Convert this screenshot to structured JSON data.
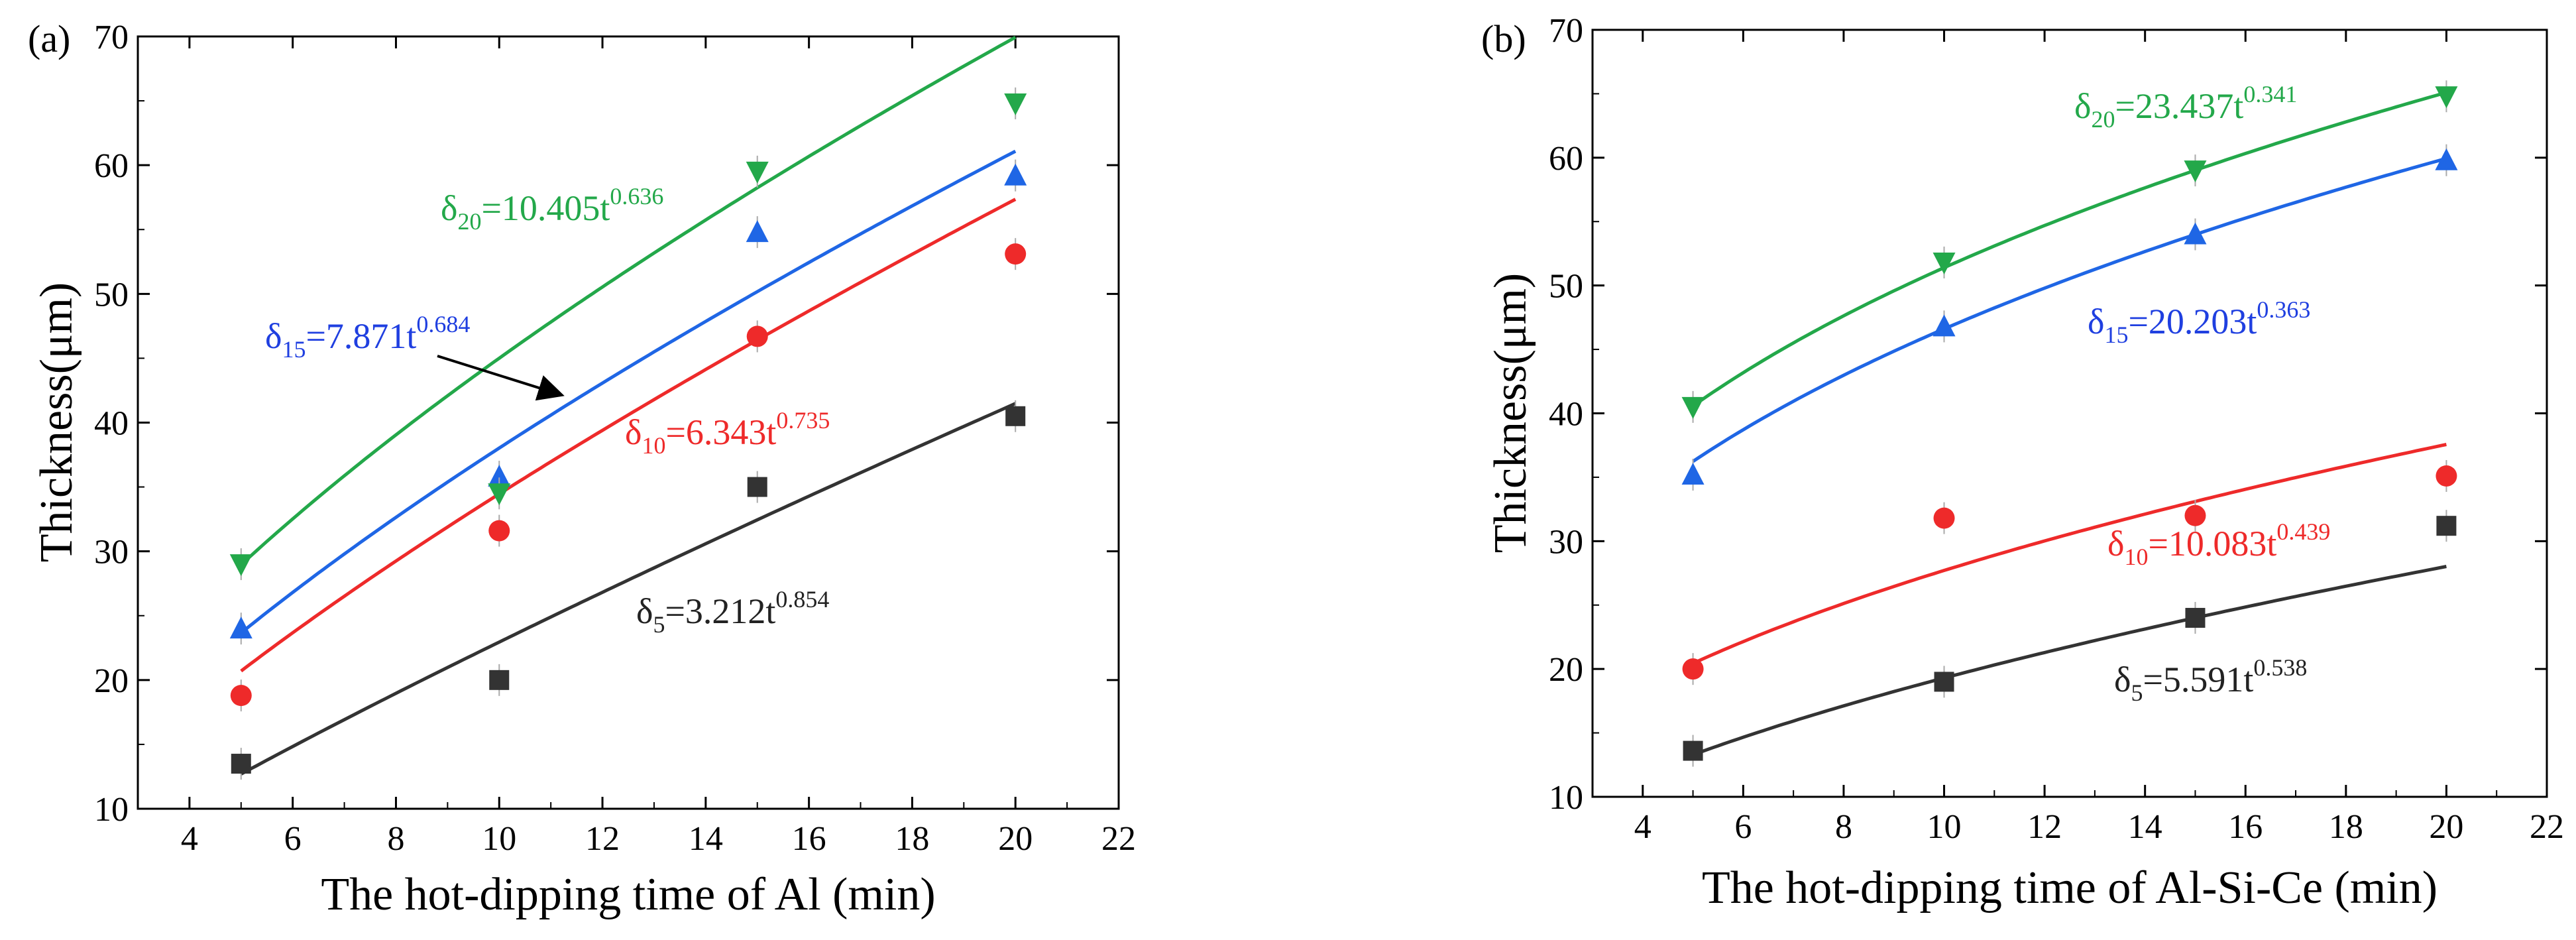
{
  "chart_data": [
    {
      "type": "scatter",
      "panel_label": "(a)",
      "xlabel": "The hot-dipping time of Al (min)",
      "ylabel": "Thickness(μm)",
      "xlim": [
        3,
        22
      ],
      "ylim": [
        10,
        70
      ],
      "xticks": [
        "4",
        "6",
        "8",
        "10",
        "12",
        "14",
        "16",
        "18",
        "20",
        "22"
      ],
      "yticks": [
        "10",
        "20",
        "30",
        "40",
        "50",
        "60",
        "70"
      ],
      "x": [
        5,
        10,
        15,
        20
      ],
      "series": [
        {
          "name": "δ5",
          "color": "#333333",
          "marker": "square",
          "values": [
            13.5,
            20.0,
            35.0,
            40.5
          ],
          "fit": {
            "a": 3.212,
            "b": 0.854
          },
          "label": {
            "pre": "δ",
            "sub": "5",
            "mid": "=3.212t",
            "sup": "0.854"
          }
        },
        {
          "name": "δ10",
          "color": "#ee2a2a",
          "marker": "circle",
          "values": [
            18.8,
            31.6,
            46.7,
            53.1
          ],
          "fit": {
            "a": 6.343,
            "b": 0.735
          },
          "label": {
            "pre": "δ",
            "sub": "10",
            "mid": "=6.343t",
            "sup": "0.735"
          }
        },
        {
          "name": "δ15",
          "color": "#1f66e5",
          "marker": "triangle-up",
          "values": [
            24.0,
            35.8,
            54.8,
            59.2
          ],
          "fit": {
            "a": 7.871,
            "b": 0.684
          },
          "label": {
            "pre": "δ",
            "sub": "15",
            "mid": "=7.871t",
            "sup": "0.684"
          }
        },
        {
          "name": "δ20",
          "color": "#23a84a",
          "marker": "triangle-down",
          "values": [
            29.0,
            34.5,
            59.5,
            64.8
          ],
          "fit": {
            "a": 10.405,
            "b": 0.636
          },
          "label": {
            "pre": "δ",
            "sub": "20",
            "mid": "=10.405t",
            "sup": "0.636"
          }
        }
      ]
    },
    {
      "type": "scatter",
      "panel_label": "(b)",
      "xlabel": "The hot-dipping time of Al-Si-Ce (min)",
      "ylabel": "Thickness(μm)",
      "xlim": [
        3,
        22
      ],
      "ylim": [
        10,
        70
      ],
      "xticks": [
        "4",
        "6",
        "8",
        "10",
        "12",
        "14",
        "16",
        "18",
        "20",
        "22"
      ],
      "yticks": [
        "10",
        "20",
        "30",
        "40",
        "50",
        "60",
        "70"
      ],
      "x": [
        5,
        10,
        15,
        20
      ],
      "series": [
        {
          "name": "δ5",
          "color": "#333333",
          "marker": "square",
          "values": [
            13.6,
            19.0,
            24.0,
            31.2
          ],
          "fit": {
            "a": 5.591,
            "b": 0.538
          },
          "label": {
            "pre": "δ",
            "sub": "5",
            "mid": "=5.591t",
            "sup": "0.538"
          }
        },
        {
          "name": "δ10",
          "color": "#ee2a2a",
          "marker": "circle",
          "values": [
            20.0,
            31.8,
            32.0,
            35.1
          ],
          "fit": {
            "a": 10.083,
            "b": 0.439
          },
          "label": {
            "pre": "δ",
            "sub": "10",
            "mid": "=10.083t",
            "sup": "0.439"
          }
        },
        {
          "name": "δ15",
          "color": "#1f66e5",
          "marker": "triangle-up",
          "values": [
            35.2,
            46.8,
            54.0,
            59.8
          ],
          "fit": {
            "a": 20.203,
            "b": 0.363
          },
          "label": {
            "pre": "δ",
            "sub": "15",
            "mid": "=20.203t",
            "sup": "0.363"
          }
        },
        {
          "name": "δ20",
          "color": "#23a84a",
          "marker": "triangle-down",
          "values": [
            40.5,
            51.8,
            59.0,
            64.8
          ],
          "fit": {
            "a": 23.437,
            "b": 0.341
          },
          "label": {
            "pre": "δ",
            "sub": "20",
            "mid": "=23.437t",
            "sup": "0.341"
          }
        }
      ]
    }
  ]
}
